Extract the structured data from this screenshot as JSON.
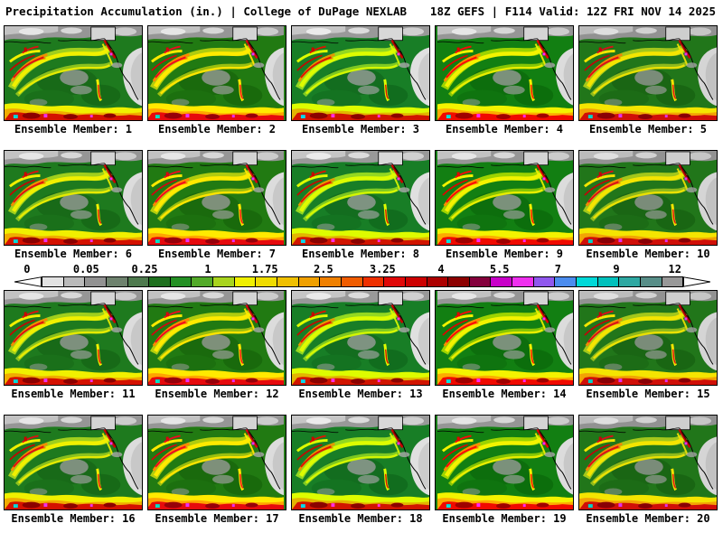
{
  "header": {
    "left": "Precipitation Accumulation (in.) | College of DuPage NEXLAB",
    "right": "18Z GEFS | F114 Valid: 12Z FRI NOV 14 2025"
  },
  "members": [
    {
      "label": "Ensemble Member: 1"
    },
    {
      "label": "Ensemble Member: 2"
    },
    {
      "label": "Ensemble Member: 3"
    },
    {
      "label": "Ensemble Member: 4"
    },
    {
      "label": "Ensemble Member: 5"
    },
    {
      "label": "Ensemble Member: 6"
    },
    {
      "label": "Ensemble Member: 7"
    },
    {
      "label": "Ensemble Member: 8"
    },
    {
      "label": "Ensemble Member: 9"
    },
    {
      "label": "Ensemble Member: 10"
    },
    {
      "label": "Ensemble Member: 11"
    },
    {
      "label": "Ensemble Member: 12"
    },
    {
      "label": "Ensemble Member: 13"
    },
    {
      "label": "Ensemble Member: 14"
    },
    {
      "label": "Ensemble Member: 15"
    },
    {
      "label": "Ensemble Member: 16"
    },
    {
      "label": "Ensemble Member: 17"
    },
    {
      "label": "Ensemble Member: 18"
    },
    {
      "label": "Ensemble Member: 19"
    },
    {
      "label": "Ensemble Member: 20"
    }
  ],
  "colorbar": {
    "unit": "in.",
    "values": [
      "0",
      "0.05",
      "0.25",
      "1",
      "1.75",
      "2.5",
      "3.25",
      "4",
      "5.5",
      "7",
      "9",
      "12"
    ],
    "tick_positions_pct": [
      1.8,
      10.3,
      18.7,
      27.8,
      36.0,
      44.4,
      52.9,
      61.3,
      69.7,
      78.1,
      86.5,
      94.9
    ],
    "cell_colors": [
      "#e2e2e2",
      "#bababa",
      "#929292",
      "#6e826e",
      "#4e7a4e",
      "#1e701e",
      "#249024",
      "#52aa28",
      "#a8d41e",
      "#f0f000",
      "#f0dc00",
      "#f0c000",
      "#f0a000",
      "#f08000",
      "#f05c00",
      "#ee3000",
      "#e00808",
      "#cc0000",
      "#ac0000",
      "#8c0000",
      "#84003c",
      "#c800c8",
      "#ee30ee",
      "#9058ee",
      "#4b8cee",
      "#00d8d8",
      "#00c0bc",
      "#2ea8a2",
      "#588e88",
      "#989898"
    ],
    "arrow_fill": "#ffffff"
  },
  "map_palette": {
    "ocean_green": "#1e7a1e",
    "land_gray": "#969696",
    "snow_white": "#e6e6e6",
    "light_precip_green": "#52aa28",
    "moderate_yellow": "#f0f000",
    "heavy_orange": "#f09000",
    "intense_red": "#e01010",
    "extreme_maroon": "#8c0000",
    "extreme_magenta": "#ee30ee",
    "extreme_cyan": "#00d8d8"
  }
}
